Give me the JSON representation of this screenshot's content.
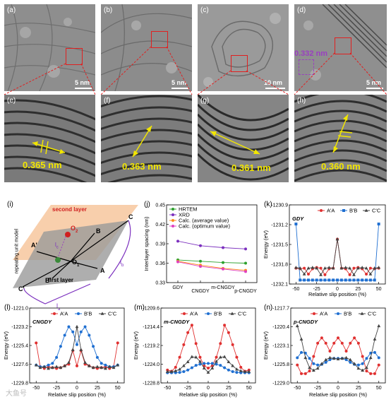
{
  "tem_panels": [
    {
      "label": "(a)",
      "scale": "5 nm"
    },
    {
      "label": "(b)",
      "scale": "5 nm"
    },
    {
      "label": "(c)",
      "scale": "10 nm"
    },
    {
      "label": "(d)",
      "scale": "5 nm",
      "inset_label": "0.332 nm"
    }
  ],
  "zoom_panels": [
    {
      "label": "(e)",
      "spacing": "0.365 nm"
    },
    {
      "label": "(f)",
      "spacing": "0.363 nm"
    },
    {
      "label": "(g)",
      "spacing": "0.361 nm"
    },
    {
      "label": "(h)",
      "spacing": "0.360 nm"
    }
  ],
  "schematic": {
    "label": "(i)",
    "side_label": "repeating unit model",
    "second_layer": "second layer",
    "first_layer": "first layer",
    "points": [
      "A",
      "B",
      "C",
      "A'",
      "B'",
      "C'"
    ],
    "o1": "O",
    "o1_sub": "1",
    "o2": "O",
    "o2_sub": "2",
    "lc": "l",
    "lc_sub": "c",
    "la": "l",
    "la_sub": "a",
    "lb": "l",
    "lb_sub": "b",
    "colors": {
      "second": "#f7c79e",
      "first": "#9a9a9a",
      "o1": "#3a8a3a",
      "o2": "#d02020"
    }
  },
  "chart_data": [
    {
      "id": "j",
      "label": "(j)",
      "type": "line",
      "ylabel": "Interlayer spacing (nm)",
      "categories": [
        "GDY",
        "CNGDY",
        "m-CNGDY",
        "p-CNGDY"
      ],
      "ylim": [
        0.33,
        0.45
      ],
      "yticks": [
        "0.45",
        "0.42",
        "0.39",
        "0.36",
        "0.33"
      ],
      "series": [
        {
          "name": "HRTEM",
          "color": "#2ca02c",
          "values": [
            0.365,
            0.363,
            0.361,
            0.36
          ]
        },
        {
          "name": "XRD",
          "color": "#7b2fbe",
          "values": [
            0.394,
            0.387,
            0.384,
            0.382
          ]
        },
        {
          "name": "Calc. (average value)",
          "color": "#ff8c1a",
          "values": [
            0.363,
            0.357,
            0.352,
            0.349
          ]
        },
        {
          "name": "Calc. (optimum value)",
          "color": "#e040c0",
          "values": [
            0.362,
            0.355,
            0.351,
            0.347
          ]
        }
      ]
    },
    {
      "id": "k",
      "label": "(k)",
      "type": "line",
      "title": "GDY",
      "xlabel": "Relative slip position (%)",
      "ylabel": "Energy (eV)",
      "x": [
        -50,
        -45,
        -40,
        -35,
        -30,
        -25,
        -20,
        -15,
        -10,
        -5,
        0,
        5,
        10,
        15,
        20,
        25,
        30,
        35,
        40,
        45,
        50
      ],
      "xticks": [
        "-50",
        "-25",
        "0",
        "25",
        "50"
      ],
      "ylim": [
        -1232.1,
        -1230.9
      ],
      "yticks": [
        "-1230.9",
        "-1231.2",
        "-1231.5",
        "-1231.8",
        "-1232.1"
      ],
      "series": [
        {
          "name": "A'A",
          "color": "#e03030",
          "marker": "circle",
          "values": [
            -1231.86,
            -1231.87,
            -1231.86,
            -1231.95,
            -1231.87,
            -1231.85,
            -1231.86,
            -1231.96,
            -1231.87,
            -1231.86,
            -1231.42,
            -1231.86,
            -1231.87,
            -1231.96,
            -1231.86,
            -1231.85,
            -1231.87,
            -1231.95,
            -1231.86,
            -1231.87,
            -1231.86
          ]
        },
        {
          "name": "B'B",
          "color": "#1f6fd1",
          "marker": "square",
          "values": [
            -1231.19,
            -1232.04,
            -1232.04,
            -1232.04,
            -1232.04,
            -1232.04,
            -1232.04,
            -1232.04,
            -1232.04,
            -1232.04,
            -1232.04,
            -1232.04,
            -1232.04,
            -1232.04,
            -1232.04,
            -1232.04,
            -1232.04,
            -1232.04,
            -1232.04,
            -1232.04,
            -1231.19
          ]
        },
        {
          "name": "C'C",
          "color": "#444444",
          "marker": "triangle",
          "values": [
            -1231.85,
            -1231.86,
            -1231.95,
            -1231.86,
            -1231.85,
            -1231.86,
            -1231.96,
            -1231.86,
            -1231.85,
            -1231.86,
            -1231.42,
            -1231.86,
            -1231.85,
            -1231.86,
            -1231.96,
            -1231.86,
            -1231.85,
            -1231.86,
            -1231.95,
            -1231.86,
            -1231.85
          ]
        }
      ]
    },
    {
      "id": "l",
      "label": "(l)",
      "type": "line",
      "title": "CNGDY",
      "xlabel": "Relative slip position (%)",
      "ylabel": "Energy (eV)",
      "x": [
        -50,
        -45,
        -40,
        -35,
        -30,
        -25,
        -20,
        -15,
        -10,
        -5,
        0,
        5,
        10,
        15,
        20,
        25,
        30,
        35,
        40,
        45,
        50
      ],
      "xticks": [
        "-50",
        "-25",
        "0",
        "25",
        "50"
      ],
      "ylim": [
        -1229.8,
        -1221.0
      ],
      "yticks": [
        "-1221.0",
        "-1223.2",
        "-1225.4",
        "-1227.6",
        "-1229.8"
      ],
      "series": [
        {
          "name": "A'A",
          "color": "#e03030",
          "marker": "circle",
          "values": [
            -1225.1,
            -1227.9,
            -1228.1,
            -1227.9,
            -1228.0,
            -1228.1,
            -1228.0,
            -1227.8,
            -1227.6,
            -1226.0,
            -1227.8,
            -1226.0,
            -1227.6,
            -1227.8,
            -1228.0,
            -1228.1,
            -1228.0,
            -1227.9,
            -1228.1,
            -1227.9,
            -1225.1
          ]
        },
        {
          "name": "B'B",
          "color": "#1f6fd1",
          "marker": "circle",
          "values": [
            -1227.7,
            -1227.9,
            -1227.9,
            -1227.7,
            -1227.5,
            -1226.8,
            -1225.5,
            -1224.2,
            -1223.2,
            -1223.8,
            -1225.3,
            -1223.8,
            -1223.2,
            -1224.2,
            -1225.5,
            -1226.8,
            -1227.5,
            -1227.7,
            -1227.9,
            -1227.9,
            -1227.7
          ]
        },
        {
          "name": "C'C",
          "color": "#444444",
          "marker": "triangle",
          "values": [
            -1227.7,
            -1228.0,
            -1227.9,
            -1228.1,
            -1228.0,
            -1227.9,
            -1228.0,
            -1227.8,
            -1227.4,
            -1225.9,
            -1223.2,
            -1225.9,
            -1227.4,
            -1227.8,
            -1228.0,
            -1227.9,
            -1228.0,
            -1228.1,
            -1227.9,
            -1228.0,
            -1227.7
          ]
        }
      ]
    },
    {
      "id": "m",
      "label": "(m)",
      "type": "line",
      "title": "m-CNGDY",
      "xlabel": "Relative slip position (%)",
      "ylabel": "Energy (eV)",
      "x": [
        -50,
        -45,
        -40,
        -35,
        -30,
        -25,
        -20,
        -15,
        -10,
        -5,
        0,
        5,
        10,
        15,
        20,
        25,
        30,
        35,
        40,
        45,
        50
      ],
      "xticks": [
        "-50",
        "-25",
        "0",
        "25",
        "50"
      ],
      "ylim": [
        -1228.8,
        -1209.6
      ],
      "yticks": [
        "-1209.6",
        "-1214.4",
        "-1219.2",
        "-1224.0",
        "-1228.8"
      ],
      "series": [
        {
          "name": "A'A",
          "color": "#e03030",
          "marker": "circle",
          "values": [
            -1225.5,
            -1225.8,
            -1224.8,
            -1222.2,
            -1219.0,
            -1215.9,
            -1214.0,
            -1218.7,
            -1222.2,
            -1224.4,
            -1225.0,
            -1224.4,
            -1222.2,
            -1218.7,
            -1214.0,
            -1215.9,
            -1219.0,
            -1222.2,
            -1224.8,
            -1225.8,
            -1225.5
          ]
        },
        {
          "name": "B'B",
          "color": "#1f6fd1",
          "marker": "circle",
          "values": [
            -1226.2,
            -1226.2,
            -1226.2,
            -1226.1,
            -1225.9,
            -1225.5,
            -1224.9,
            -1224.3,
            -1224.0,
            -1223.8,
            -1223.8,
            -1223.8,
            -1224.0,
            -1224.3,
            -1224.9,
            -1225.5,
            -1225.9,
            -1226.1,
            -1226.2,
            -1226.2,
            -1226.2
          ]
        },
        {
          "name": "C'C",
          "color": "#444444",
          "marker": "triangle",
          "values": [
            -1225.9,
            -1225.9,
            -1225.7,
            -1225.3,
            -1224.4,
            -1223.4,
            -1222.1,
            -1222.2,
            -1223.3,
            -1225.0,
            -1226.1,
            -1225.0,
            -1223.3,
            -1222.2,
            -1222.1,
            -1223.4,
            -1224.4,
            -1225.3,
            -1225.7,
            -1225.9,
            -1225.9
          ]
        }
      ]
    },
    {
      "id": "n",
      "label": "(n)",
      "type": "line",
      "title": "p-CNGDY",
      "xlabel": "Relative slip position (%)",
      "ylabel": "Energy (eV)",
      "x": [
        -50,
        -45,
        -40,
        -35,
        -30,
        -25,
        -20,
        -15,
        -10,
        -5,
        0,
        5,
        10,
        15,
        20,
        25,
        30,
        35,
        40,
        45,
        50
      ],
      "xticks": [
        "-50",
        "-25",
        "0",
        "25",
        "50"
      ],
      "ylim": [
        -1229.0,
        -1217.7
      ],
      "yticks": [
        "-1217.7",
        "-1220.4",
        "-1223.1",
        "-1225.8",
        "-1229.0"
      ],
      "series": [
        {
          "name": "A'A",
          "color": "#e03030",
          "marker": "circle",
          "values": [
            -1226.3,
            -1227.6,
            -1227.6,
            -1227.2,
            -1225.0,
            -1223.0,
            -1222.2,
            -1223.0,
            -1224.2,
            -1223.0,
            -1222.2,
            -1223.0,
            -1224.2,
            -1223.0,
            -1222.2,
            -1223.0,
            -1225.0,
            -1227.2,
            -1227.6,
            -1227.6,
            -1226.3
          ]
        },
        {
          "name": "B'B",
          "color": "#1f6fd1",
          "marker": "circle",
          "values": [
            -1225.2,
            -1224.4,
            -1224.5,
            -1225.3,
            -1226.1,
            -1226.3,
            -1226.2,
            -1225.9,
            -1225.5,
            -1225.3,
            -1225.3,
            -1225.3,
            -1225.5,
            -1225.9,
            -1226.2,
            -1226.3,
            -1226.1,
            -1225.3,
            -1224.5,
            -1224.4,
            -1225.2
          ]
        },
        {
          "name": "C'C",
          "color": "#444444",
          "marker": "triangle",
          "values": [
            -1220.4,
            -1222.4,
            -1225.2,
            -1226.7,
            -1227.1,
            -1226.8,
            -1226.1,
            -1225.5,
            -1225.2,
            -1225.3,
            -1225.4,
            -1225.3,
            -1225.2,
            -1225.5,
            -1226.1,
            -1226.8,
            -1227.1,
            -1226.7,
            -1225.2,
            -1222.4,
            -1220.4
          ]
        }
      ]
    }
  ],
  "watermark": "大鱼号"
}
